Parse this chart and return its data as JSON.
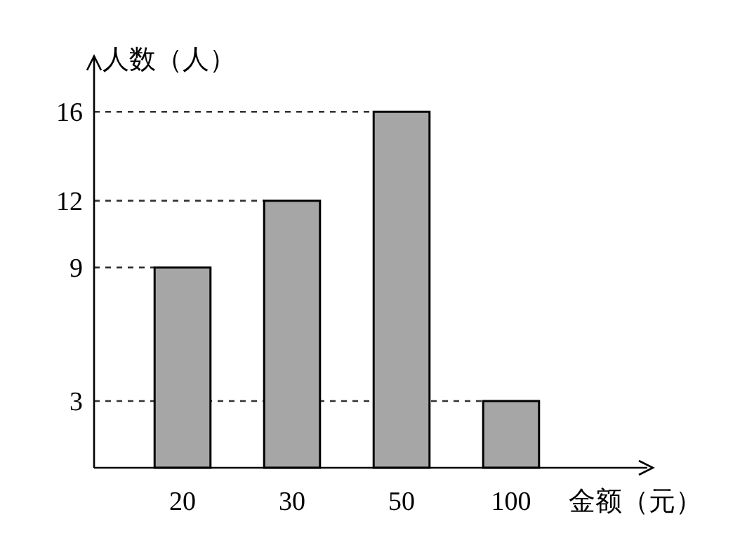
{
  "chart_data": {
    "type": "bar",
    "xlabel": "金额（元）",
    "ylabel": "人数（人）",
    "categories": [
      "20",
      "30",
      "50",
      "100"
    ],
    "values": [
      9,
      12,
      16,
      3
    ],
    "color": "#a6a6a6",
    "ylim": [
      0,
      18.5
    ],
    "yticks": [
      3,
      9,
      12,
      16
    ],
    "ref_lines": [
      {
        "axis": "y",
        "value": 16,
        "line_style": "dashed",
        "color": "#333333"
      },
      {
        "axis": "y",
        "value": 12,
        "line_style": "dashed",
        "color": "#333333"
      },
      {
        "axis": "y",
        "value": 9,
        "line_style": "dashed",
        "color": "#333333"
      },
      {
        "axis": "y",
        "value": 3,
        "line_style": "dashed",
        "color": "#333333"
      }
    ]
  }
}
